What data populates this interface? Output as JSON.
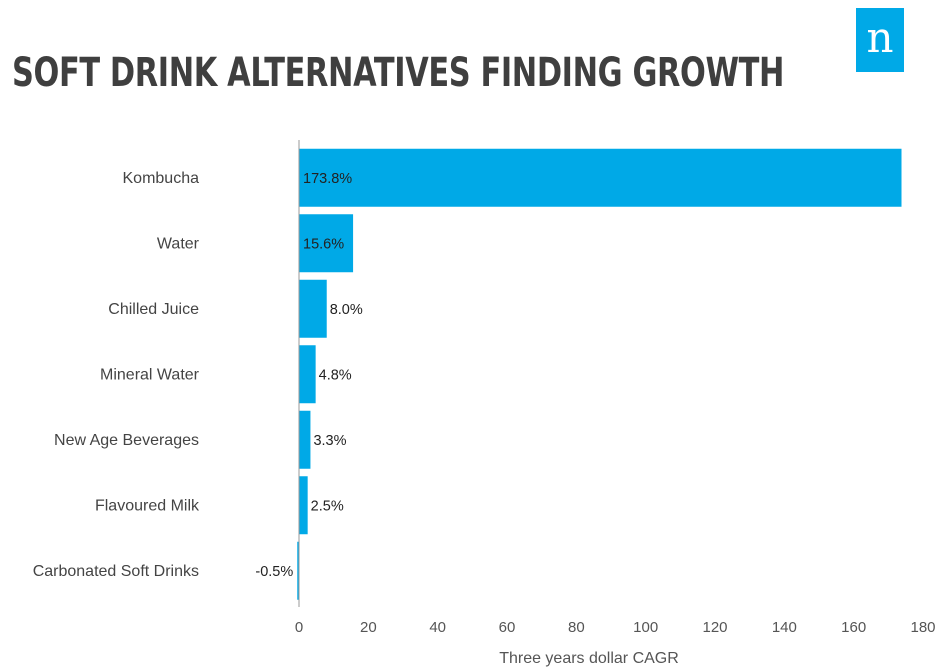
{
  "title": "SOFT DRINK ALTERNATIVES FINDING GROWTH",
  "logo": {
    "glyph": "n",
    "icon": "nielsen-logo-icon",
    "color": "#00a9e7"
  },
  "colors": {
    "bar": "#00a9e7",
    "axis": "#999999",
    "text": "#444444"
  },
  "chart_data": {
    "type": "bar",
    "orientation": "horizontal",
    "title": "SOFT DRINK ALTERNATIVES FINDING GROWTH",
    "categories": [
      "Kombucha",
      "Water",
      "Chilled Juice",
      "Mineral Water",
      "New Age Beverages",
      "Flavoured Milk",
      "Carbonated Soft Drinks"
    ],
    "values": [
      173.8,
      15.6,
      8.0,
      4.8,
      3.3,
      2.5,
      -0.5
    ],
    "data_labels": [
      "173.8%",
      "15.6%",
      "8.0%",
      "4.8%",
      "3.3%",
      "2.5%",
      "-0.5%"
    ],
    "xlabel": "Three years dollar CAGR",
    "ylabel": "",
    "xlim": [
      0,
      180
    ],
    "xticks": [
      0,
      20,
      40,
      60,
      80,
      100,
      120,
      140,
      160,
      180
    ],
    "grid": false,
    "legend": "none"
  }
}
